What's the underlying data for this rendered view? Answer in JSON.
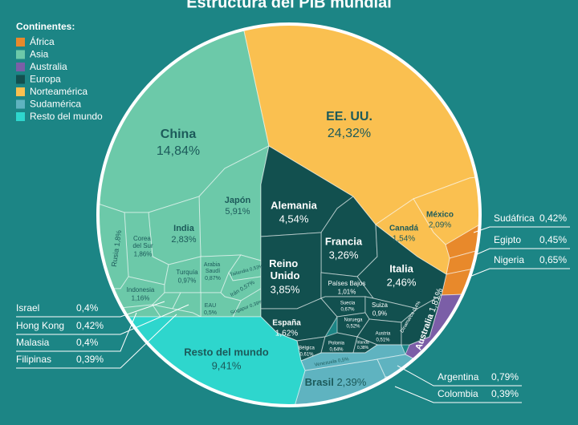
{
  "chart_data": {
    "type": "voronoi-treemap",
    "title": "Estructura del PIB mundial",
    "legend_title": "Continentes:",
    "series": [
      {
        "name": "África",
        "color": "#e8892b",
        "categories": [
          "Sudáfrica",
          "Egipto",
          "Nigeria"
        ],
        "values": [
          0.42,
          0.45,
          0.65
        ],
        "value_labels": [
          "0,42%",
          "0,45%",
          "0,65%"
        ]
      },
      {
        "name": "Asia",
        "color": "#6cc9a9",
        "categories": [
          "China",
          "Japón",
          "India",
          "Corea del Sur",
          "Rusia",
          "Indonesia",
          "Turquía",
          "Arabia Saudí",
          "Tailandia",
          "Irán",
          "Singapur",
          "EAU",
          "Israel",
          "Hong Kong",
          "Malasia",
          "Filipinas"
        ],
        "values": [
          14.84,
          5.91,
          2.83,
          1.86,
          1.8,
          1.16,
          0.97,
          0.87,
          0.53,
          0.57,
          0.39,
          0.5,
          0.4,
          0.42,
          0.4,
          0.39
        ],
        "value_labels": [
          "14,84%",
          "5,91%",
          "2,83%",
          "1,86%",
          "1,8%",
          "1,16%",
          "0,97%",
          "0,87%",
          "0,53%",
          "0,57%",
          "0,39%",
          "0,5%",
          "0,4%",
          "0,42%",
          "0,4%",
          "0,39%"
        ]
      },
      {
        "name": "Australia",
        "color": "#7b5ea7",
        "categories": [
          "Australia"
        ],
        "values": [
          1.81
        ],
        "value_labels": [
          "1,81%"
        ]
      },
      {
        "name": "Europa",
        "color": "#12504f",
        "categories": [
          "Alemania",
          "Francia",
          "Reino Unido",
          "Italia",
          "España",
          "Países Bajos",
          "Suecia",
          "Suiza",
          "Noruega",
          "Austria",
          "Bélgica",
          "Polonia",
          "Irlanda",
          "Dinamarca"
        ],
        "values": [
          4.54,
          3.26,
          3.85,
          2.46,
          1.62,
          1.01,
          0.67,
          0.9,
          0.52,
          0.51,
          0.61,
          0.64,
          0.38,
          0.4
        ],
        "value_labels": [
          "4,54%",
          "3,26%",
          "3,85%",
          "2,46%",
          "1,62%",
          "1,01%",
          "0,67%",
          "0,9%",
          "0,52%",
          "0,51%",
          "0,61%",
          "0,64%",
          "0,38%",
          "0,4%"
        ]
      },
      {
        "name": "Norteamérica",
        "color": "#fac050",
        "categories": [
          "EE. UU.",
          "México",
          "Canadá"
        ],
        "values": [
          24.32,
          2.09,
          1.54
        ],
        "value_labels": [
          "24,32%",
          "2,09%",
          "1,54%"
        ]
      },
      {
        "name": "Sudamérica",
        "color": "#5fb3c0",
        "categories": [
          "Brasil",
          "Venezuela",
          "Argentina",
          "Colombia"
        ],
        "values": [
          2.39,
          0.5,
          0.79,
          0.39
        ],
        "value_labels": [
          "2,39%",
          "0,5%",
          "0,79%",
          "0,39%"
        ]
      },
      {
        "name": "Resto del mundo",
        "color": "#2ed6cd",
        "categories": [
          "Resto del mundo"
        ],
        "values": [
          9.41
        ],
        "value_labels": [
          "9,41%"
        ]
      }
    ]
  }
}
